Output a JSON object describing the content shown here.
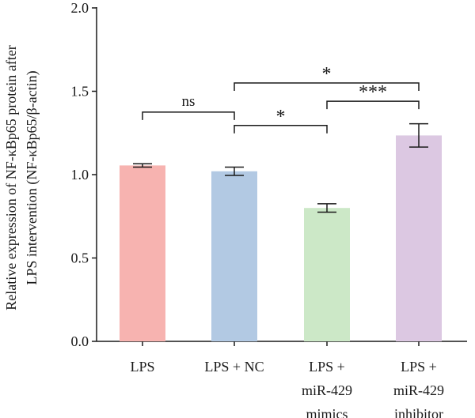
{
  "chart_data": {
    "type": "bar",
    "title": "",
    "ylabel_lines": [
      "Relative expression of NF-κBp65 protein after",
      "LPS intervention (NF-κBp65/β-actin)"
    ],
    "xlabel": "",
    "ylim": [
      0,
      2.0
    ],
    "yticks": [
      "0.0",
      "0.5",
      "1.0",
      "1.5",
      "2.0"
    ],
    "categories": [
      [
        "LPS"
      ],
      [
        "LPS + NC"
      ],
      [
        "LPS +",
        "miR-429",
        "mimics"
      ],
      [
        "LPS +",
        "miR-429",
        "inhibitor"
      ]
    ],
    "values": [
      1.055,
      1.02,
      0.8,
      1.235
    ],
    "errors": [
      0.01,
      0.025,
      0.025,
      0.07
    ],
    "colors": [
      "#f7b3b0",
      "#b2c9e3",
      "#cce8c7",
      "#dcc8e2"
    ],
    "significance": [
      {
        "from": 0,
        "to": 1,
        "label": "ns",
        "level": 1.375
      },
      {
        "from": 1,
        "to": 2,
        "label": "*",
        "level": 1.295
      },
      {
        "from": 2,
        "to": 3,
        "label": "***",
        "level": 1.44
      },
      {
        "from": 1,
        "to": 3,
        "label": "*",
        "level": 1.55
      }
    ]
  }
}
